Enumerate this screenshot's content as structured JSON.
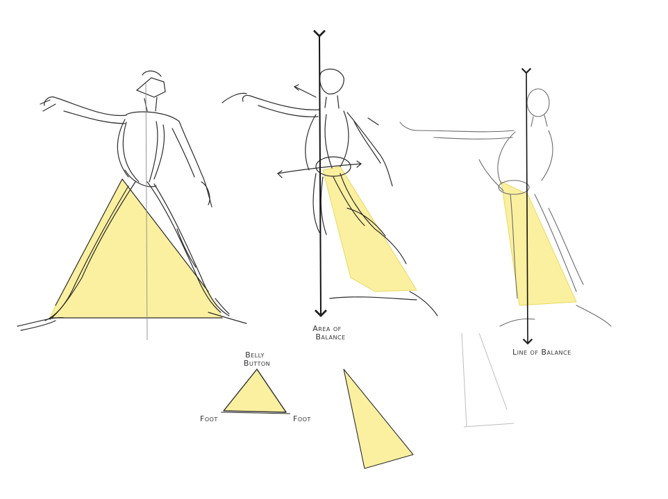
{
  "labels": {
    "area_of_balance_line1": "Area of",
    "area_of_balance_line2": "Balance",
    "line_of_balance": "Line of Balance",
    "belly_button_line1": "Belly",
    "belly_button_line2": "Button",
    "foot_left": "Foot",
    "foot_right": "Foot"
  },
  "colors": {
    "highlight_fill": "#fbf0a0",
    "highlight_edge": "#e9d860",
    "pencil": "#2a2a2a",
    "pencil_light": "#8a8a8a",
    "paper": "#ffffff"
  }
}
